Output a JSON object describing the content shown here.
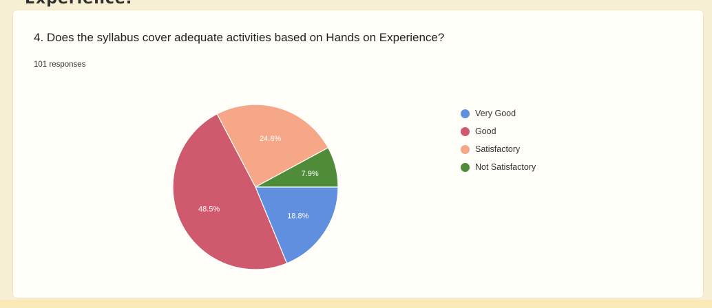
{
  "heading_fragment": "Experience.",
  "question": "4. Does the syllabus cover adequate activities based on Hands on Experience?",
  "responses": "101 responses",
  "chart_data": {
    "type": "pie",
    "slices": [
      {
        "name": "Very Good",
        "value": 18.8,
        "label": "18.8%",
        "color": "#5f8fde"
      },
      {
        "name": "Good",
        "value": 48.5,
        "label": "48.5%",
        "color": "#cf5a6e"
      },
      {
        "name": "Satisfactory",
        "value": 24.8,
        "label": "24.8%",
        "color": "#f5a787"
      },
      {
        "name": "Not Satisfactory",
        "value": 7.9,
        "label": "7.9%",
        "color": "#4e8c3a"
      }
    ],
    "legend_position": "right"
  },
  "legend": [
    {
      "label": "Very Good",
      "color": "#5f8fde"
    },
    {
      "label": "Good",
      "color": "#cf5a6e"
    },
    {
      "label": "Satisfactory",
      "color": "#f5a787"
    },
    {
      "label": "Not Satisfactory",
      "color": "#4e8c3a"
    }
  ]
}
